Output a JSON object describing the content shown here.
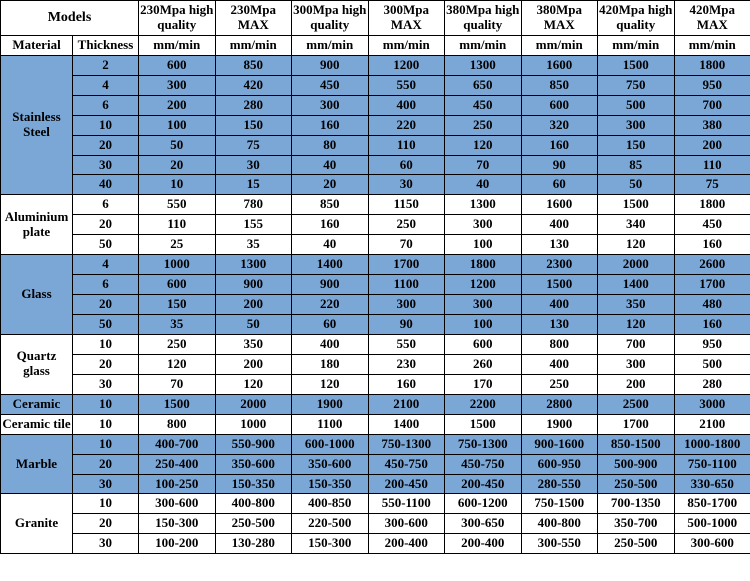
{
  "header": {
    "models_label": "Models",
    "columns": [
      "230Mpa high quality",
      "230Mpa MAX",
      "300Mpa high quality",
      "300Mpa MAX",
      "380Mpa high quality",
      "380Mpa MAX",
      "420Mpa high quality",
      "420Mpa MAX"
    ],
    "material_label": "Material",
    "thickness_label": "Thickness",
    "unit": "mm/min"
  },
  "colors": {
    "band_blue": "#7ba7d7",
    "white": "#ffffff",
    "border": "#000000",
    "text": "#000000"
  },
  "font": {
    "family": "Times New Roman, serif",
    "cell_size_pt": 10,
    "weight": "bold"
  },
  "groups": [
    {
      "material": "Stainless Steel",
      "band": "blue",
      "rows": [
        {
          "t": "2",
          "v": [
            "600",
            "850",
            "900",
            "1200",
            "1300",
            "1600",
            "1500",
            "1800"
          ]
        },
        {
          "t": "4",
          "v": [
            "300",
            "420",
            "450",
            "550",
            "650",
            "850",
            "750",
            "950"
          ]
        },
        {
          "t": "6",
          "v": [
            "200",
            "280",
            "300",
            "400",
            "450",
            "600",
            "500",
            "700"
          ]
        },
        {
          "t": "10",
          "v": [
            "100",
            "150",
            "160",
            "220",
            "250",
            "320",
            "300",
            "380"
          ]
        },
        {
          "t": "20",
          "v": [
            "50",
            "75",
            "80",
            "110",
            "120",
            "160",
            "150",
            "200"
          ]
        },
        {
          "t": "30",
          "v": [
            "20",
            "30",
            "40",
            "60",
            "70",
            "90",
            "85",
            "110"
          ]
        },
        {
          "t": "40",
          "v": [
            "10",
            "15",
            "20",
            "30",
            "40",
            "60",
            "50",
            "75"
          ]
        }
      ]
    },
    {
      "material": "Aluminium plate",
      "band": "white",
      "rows": [
        {
          "t": "6",
          "v": [
            "550",
            "780",
            "850",
            "1150",
            "1300",
            "1600",
            "1500",
            "1800"
          ]
        },
        {
          "t": "20",
          "v": [
            "110",
            "155",
            "160",
            "250",
            "300",
            "400",
            "340",
            "450"
          ]
        },
        {
          "t": "50",
          "v": [
            "25",
            "35",
            "40",
            "70",
            "100",
            "130",
            "120",
            "160"
          ]
        }
      ]
    },
    {
      "material": "Glass",
      "band": "blue",
      "rows": [
        {
          "t": "4",
          "v": [
            "1000",
            "1300",
            "1400",
            "1700",
            "1800",
            "2300",
            "2000",
            "2600"
          ]
        },
        {
          "t": "6",
          "v": [
            "600",
            "900",
            "900",
            "1100",
            "1200",
            "1500",
            "1400",
            "1700"
          ]
        },
        {
          "t": "20",
          "v": [
            "150",
            "200",
            "220",
            "300",
            "300",
            "400",
            "350",
            "480"
          ]
        },
        {
          "t": "50",
          "v": [
            "35",
            "50",
            "60",
            "90",
            "100",
            "130",
            "120",
            "160"
          ]
        }
      ]
    },
    {
      "material": "Quartz glass",
      "band": "white",
      "rows": [
        {
          "t": "10",
          "v": [
            "250",
            "350",
            "400",
            "550",
            "600",
            "800",
            "700",
            "950"
          ]
        },
        {
          "t": "20",
          "v": [
            "120",
            "200",
            "180",
            "230",
            "260",
            "400",
            "300",
            "500"
          ]
        },
        {
          "t": "30",
          "v": [
            "70",
            "120",
            "120",
            "160",
            "170",
            "250",
            "200",
            "280"
          ]
        }
      ]
    },
    {
      "material": "Ceramic",
      "band": "blue",
      "rows": [
        {
          "t": "10",
          "v": [
            "1500",
            "2000",
            "1900",
            "2100",
            "2200",
            "2800",
            "2500",
            "3000"
          ]
        }
      ]
    },
    {
      "material": "Ceramic tile",
      "band": "white",
      "rows": [
        {
          "t": "10",
          "v": [
            "800",
            "1000",
            "1100",
            "1400",
            "1500",
            "1900",
            "1700",
            "2100"
          ]
        }
      ]
    },
    {
      "material": "Marble",
      "band": "blue",
      "rows": [
        {
          "t": "10",
          "v": [
            "400-700",
            "550-900",
            "600-1000",
            "750-1300",
            "750-1300",
            "900-1600",
            "850-1500",
            "1000-1800"
          ]
        },
        {
          "t": "20",
          "v": [
            "250-400",
            "350-600",
            "350-600",
            "450-750",
            "450-750",
            "600-950",
            "500-900",
            "750-1100"
          ]
        },
        {
          "t": "30",
          "v": [
            "100-250",
            "150-350",
            "150-350",
            "200-450",
            "200-450",
            "280-550",
            "250-500",
            "330-650"
          ]
        }
      ]
    },
    {
      "material": "Granite",
      "band": "white",
      "rows": [
        {
          "t": "10",
          "v": [
            "300-600",
            "400-800",
            "400-850",
            "550-1100",
            "600-1200",
            "750-1500",
            "700-1350",
            "850-1700"
          ]
        },
        {
          "t": "20",
          "v": [
            "150-300",
            "250-500",
            "220-500",
            "300-600",
            "300-650",
            "400-800",
            "350-700",
            "500-1000"
          ]
        },
        {
          "t": "30",
          "v": [
            "100-200",
            "130-280",
            "150-300",
            "200-400",
            "200-400",
            "300-550",
            "250-500",
            "300-600"
          ]
        }
      ]
    }
  ]
}
